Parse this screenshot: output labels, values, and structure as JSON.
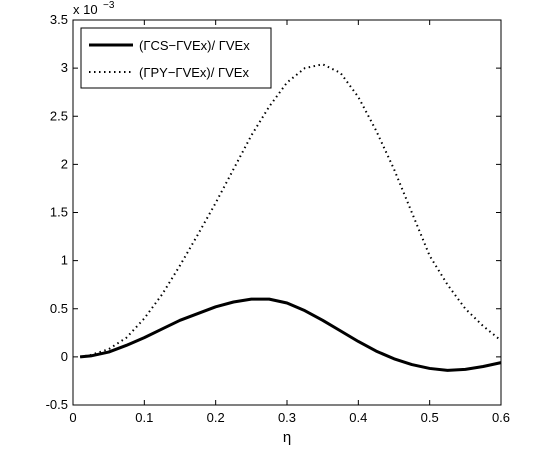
{
  "chart_data": {
    "type": "line",
    "xlabel": "η",
    "y_multiplier": {
      "base": "x 10",
      "exponent": "−3"
    },
    "x": [
      0.01,
      0.025,
      0.05,
      0.075,
      0.1,
      0.125,
      0.15,
      0.175,
      0.2,
      0.225,
      0.25,
      0.275,
      0.3,
      0.325,
      0.35,
      0.375,
      0.4,
      0.425,
      0.45,
      0.475,
      0.5,
      0.525,
      0.55,
      0.575,
      0.6
    ],
    "series": [
      {
        "name": "(ΓCS−ΓVEx)/ ΓVEx",
        "color": "#000000",
        "style": "solid",
        "values": [
          0,
          0.01,
          0.05,
          0.12,
          0.2,
          0.29,
          0.38,
          0.45,
          0.52,
          0.57,
          0.6,
          0.6,
          0.56,
          0.48,
          0.38,
          0.27,
          0.16,
          0.06,
          -0.02,
          -0.08,
          -0.12,
          -0.14,
          -0.13,
          -0.1,
          -0.06
        ]
      },
      {
        "name": "(ΓPY−ΓVEx)/ ΓVEx",
        "color": "#000000",
        "style": "dotted",
        "values": [
          0,
          0.02,
          0.08,
          0.2,
          0.4,
          0.65,
          0.95,
          1.27,
          1.6,
          1.95,
          2.3,
          2.6,
          2.85,
          3.0,
          3.04,
          2.95,
          2.7,
          2.35,
          1.95,
          1.5,
          1.05,
          0.75,
          0.5,
          0.32,
          0.17
        ]
      }
    ],
    "xlim": [
      0,
      0.6
    ],
    "xticks": [
      0,
      0.1,
      0.2,
      0.3,
      0.4,
      0.5,
      0.6
    ],
    "ylim": [
      -0.5,
      3.5
    ],
    "yticks": [
      -0.5,
      0,
      0.5,
      1,
      1.5,
      2,
      2.5,
      3,
      3.5
    ],
    "legend": "upper-left"
  }
}
